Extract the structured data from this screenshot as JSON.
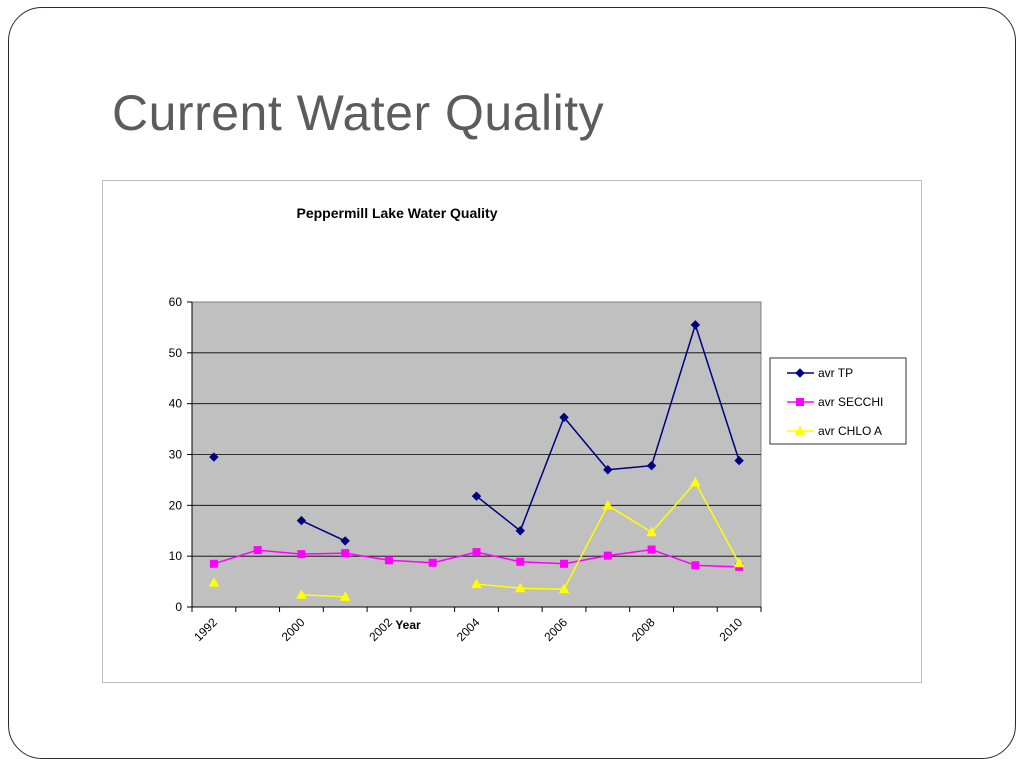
{
  "slide": {
    "title": "Current Water Quality"
  },
  "colors": {
    "plot_background": "#c0c0c0",
    "avr_tp": "#000080",
    "avr_secchi": "#ff00ff",
    "avr_chlo_a": "#ffff00",
    "slide_title": "#5c5c5c"
  },
  "chart_data": {
    "type": "line",
    "title": "Peppermill Lake Water Quality",
    "xlabel": "Year",
    "ylabel": "",
    "ylim": [
      0,
      60
    ],
    "yticks": [
      0,
      10,
      20,
      30,
      40,
      50,
      60
    ],
    "grid": true,
    "legend_position": "right",
    "categories": [
      "1992",
      "",
      "2000",
      "",
      "2002",
      "",
      "2004",
      "",
      "2006",
      "",
      "2008",
      "",
      "2010"
    ],
    "series": [
      {
        "name": "avr TP",
        "marker": "diamond",
        "values": [
          29.5,
          null,
          17.0,
          13.0,
          null,
          null,
          21.8,
          15.0,
          37.3,
          27.0,
          27.8,
          55.5,
          28.8
        ]
      },
      {
        "name": "avr SECCHI",
        "marker": "square",
        "values": [
          8.5,
          11.2,
          10.4,
          10.6,
          9.2,
          8.7,
          10.8,
          8.9,
          8.5,
          10.1,
          11.3,
          8.2,
          7.9
        ]
      },
      {
        "name": "avr CHLO A",
        "marker": "triangle",
        "values": [
          4.8,
          null,
          2.4,
          2.0,
          null,
          null,
          4.5,
          3.7,
          3.5,
          20.0,
          14.7,
          24.5,
          8.6
        ]
      }
    ]
  }
}
